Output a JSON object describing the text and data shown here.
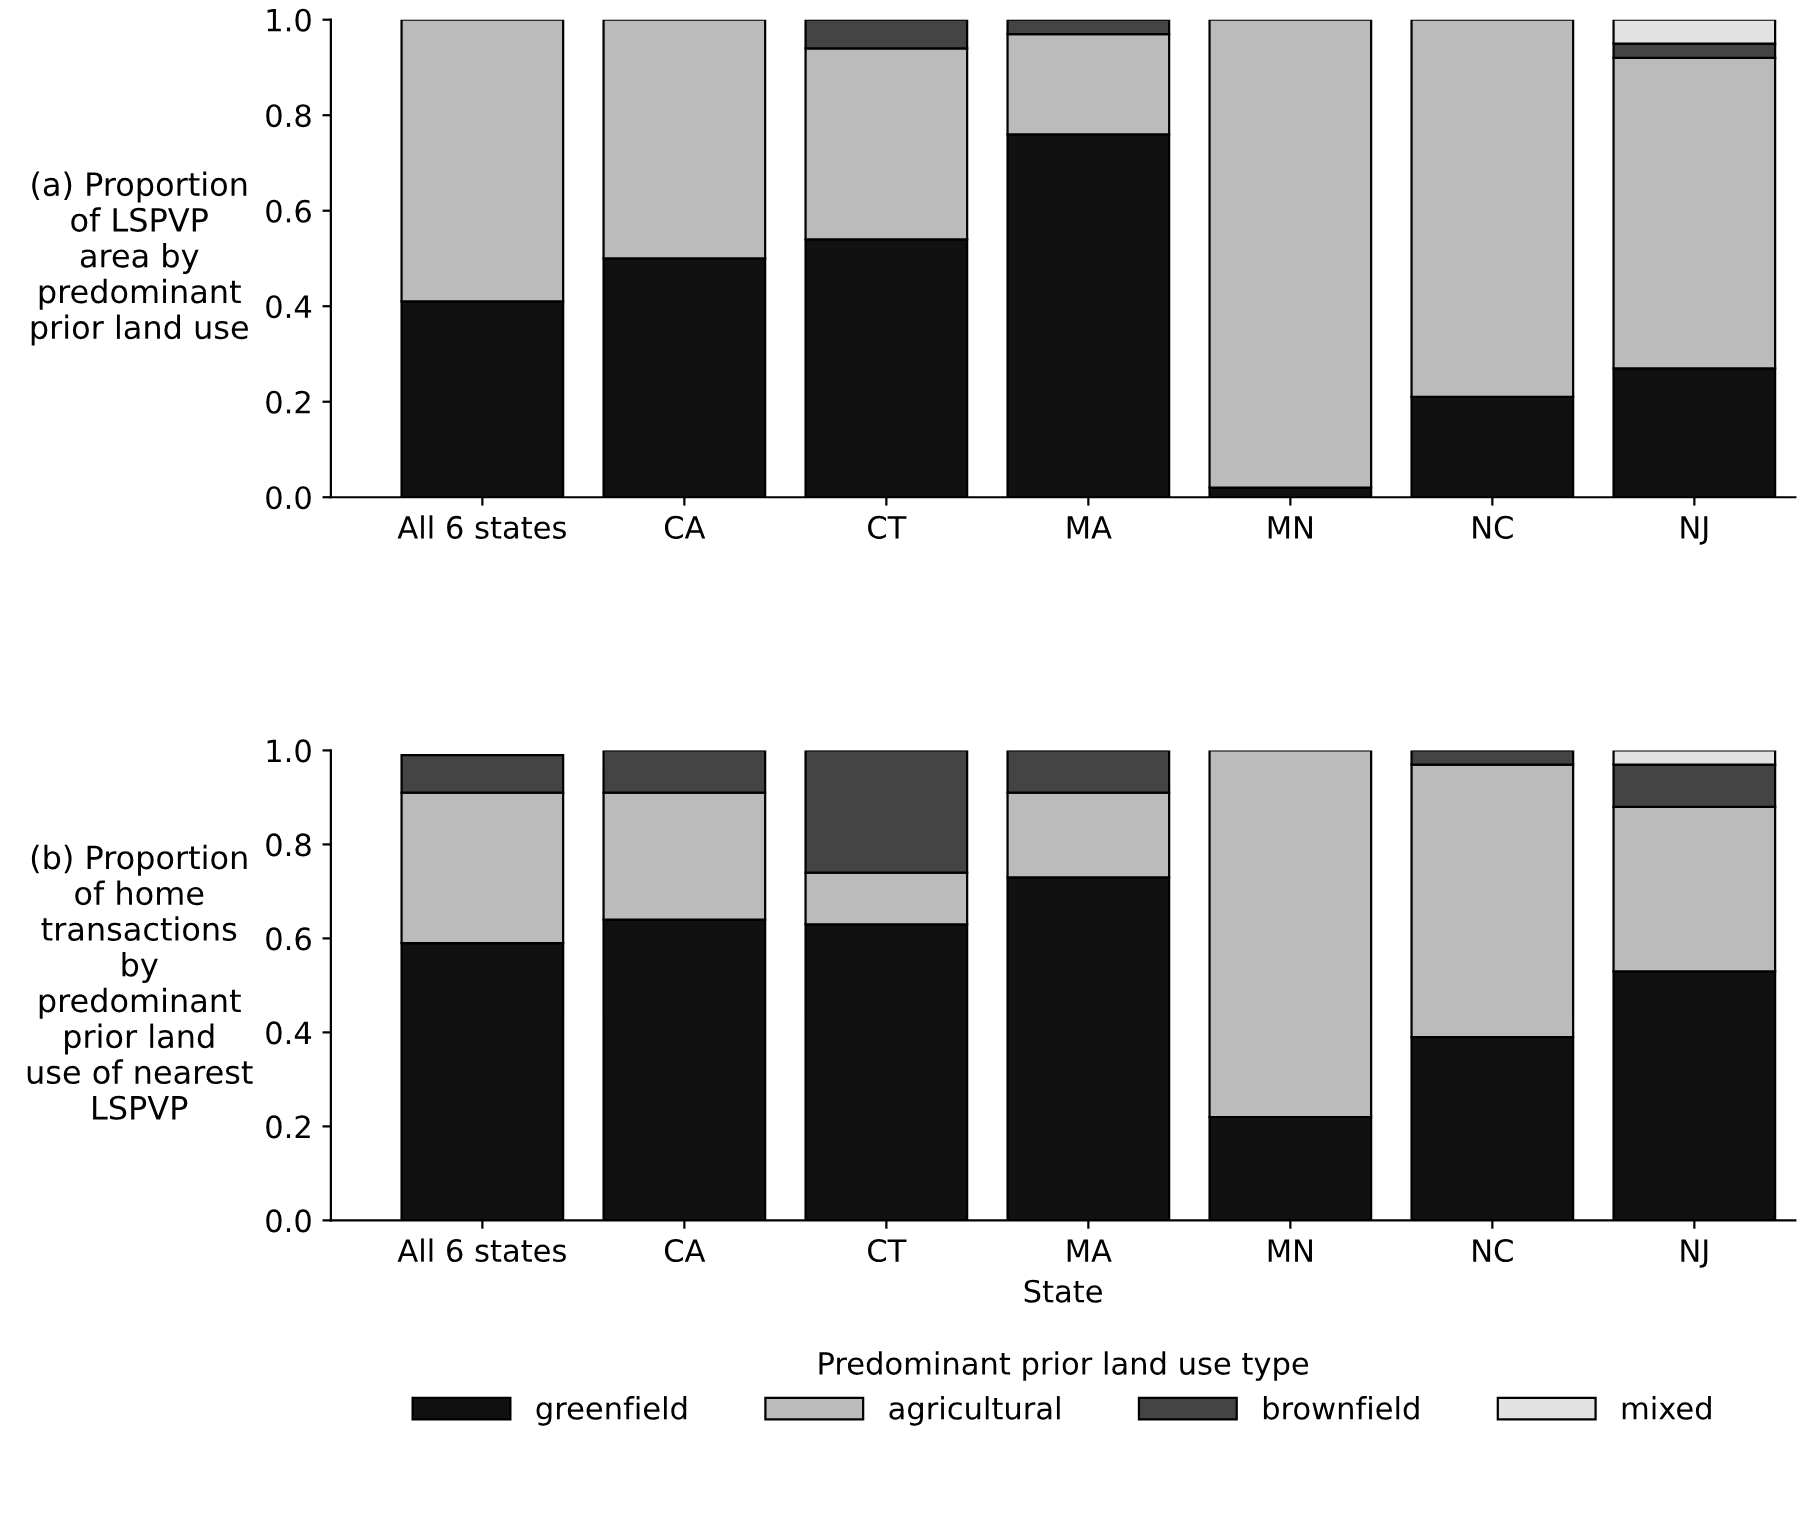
{
  "chart_data": [
    {
      "type": "bar",
      "stacked": true,
      "ylabel": "(a) Proportion\nof LSPVP\narea by\npredominant\nprior land use",
      "categories": [
        "All 6 states",
        "CA",
        "CT",
        "MA",
        "MN",
        "NC",
        "NJ"
      ],
      "ylim": [
        0,
        1
      ],
      "yticks": [
        {
          "value": 0,
          "label": "0.0"
        },
        {
          "value": 0.2,
          "label": "0.2"
        },
        {
          "value": 0.4,
          "label": "0.4"
        },
        {
          "value": 0.6,
          "label": "0.6"
        },
        {
          "value": 0.8,
          "label": "0.8"
        },
        {
          "value": 1,
          "label": "1.0"
        }
      ],
      "grid": false,
      "series": [
        {
          "color": "#111111",
          "values": [
            0.41,
            0.5,
            0.54,
            0.76,
            0.02,
            0.21,
            0.27
          ]
        },
        {
          "color": "#bbbbbb",
          "values": [
            0.59,
            0.5,
            0.4,
            0.21,
            0.98,
            0.79,
            0.65
          ]
        },
        {
          "color": "#444444",
          "values": [
            null,
            null,
            0.06,
            0.03,
            null,
            null,
            0.03
          ]
        },
        {
          "color": "#e2e2e2",
          "values": [
            null,
            null,
            null,
            null,
            null,
            null,
            0.05
          ]
        }
      ]
    },
    {
      "type": "bar",
      "stacked": true,
      "ylabel": "(b) Proportion\nof home\ntransactions\nby\npredominant\nprior land\nuse of nearest\nLSPVP",
      "xlabel": "State",
      "legend_title": "Predominant prior land use type",
      "categories": [
        "All 6 states",
        "CA",
        "CT",
        "MA",
        "MN",
        "NC",
        "NJ"
      ],
      "ylim": [
        0,
        1
      ],
      "yticks": [
        {
          "value": 0,
          "label": "0.0"
        },
        {
          "value": 0.2,
          "label": "0.2"
        },
        {
          "value": 0.4,
          "label": "0.4"
        },
        {
          "value": 0.6,
          "label": "0.6"
        },
        {
          "value": 0.8,
          "label": "0.8"
        },
        {
          "value": 1,
          "label": "1.0"
        }
      ],
      "grid": false,
      "legend": "bottom",
      "series": [
        {
          "name": "greenfield",
          "color": "#111111",
          "values": [
            0.59,
            0.64,
            0.63,
            0.73,
            0.22,
            0.39,
            0.53
          ]
        },
        {
          "name": "agricultural",
          "color": "#bbbbbb",
          "values": [
            0.32,
            0.27,
            0.11,
            0.18,
            0.78,
            0.58,
            0.35
          ]
        },
        {
          "name": "brownfield",
          "color": "#444444",
          "values": [
            0.08,
            0.09,
            0.26,
            0.09,
            null,
            0.03,
            0.09
          ]
        },
        {
          "name": "mixed",
          "color": "#e2e2e2",
          "values": [
            null,
            null,
            null,
            null,
            null,
            null,
            0.03
          ]
        }
      ]
    }
  ]
}
